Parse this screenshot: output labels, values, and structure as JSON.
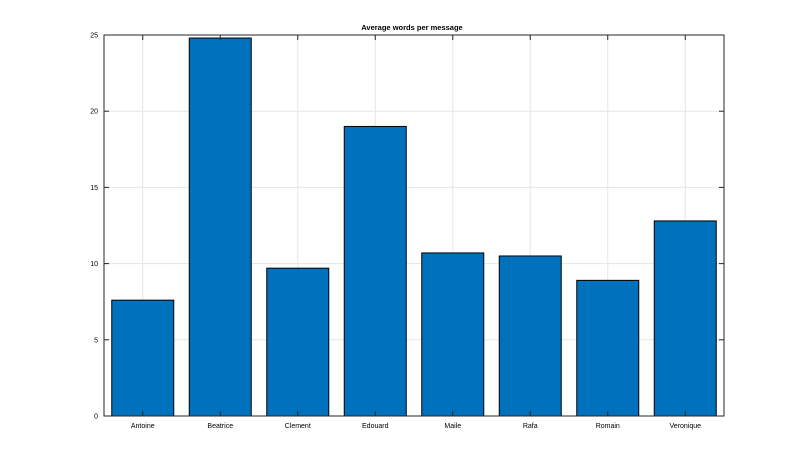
{
  "chart_data": {
    "type": "bar",
    "title": "Average words per message",
    "xlabel": "",
    "ylabel": "",
    "categories": [
      "Antoine",
      "Beatrice",
      "Clement",
      "Edouard",
      "Maile",
      "Rafa",
      "Romain",
      "Veronique"
    ],
    "values": [
      7.6,
      24.8,
      9.7,
      19.0,
      10.7,
      10.5,
      8.9,
      12.8
    ],
    "ylim": [
      0,
      25
    ],
    "yticks": [
      0,
      5,
      10,
      15,
      20,
      25
    ],
    "grid": true,
    "legend": "none",
    "colors": {
      "bar": "#0072BD",
      "bar_edge": "#000000",
      "grid": "#e6e6e6",
      "axis": "#262626",
      "background": "#ffffff"
    }
  }
}
